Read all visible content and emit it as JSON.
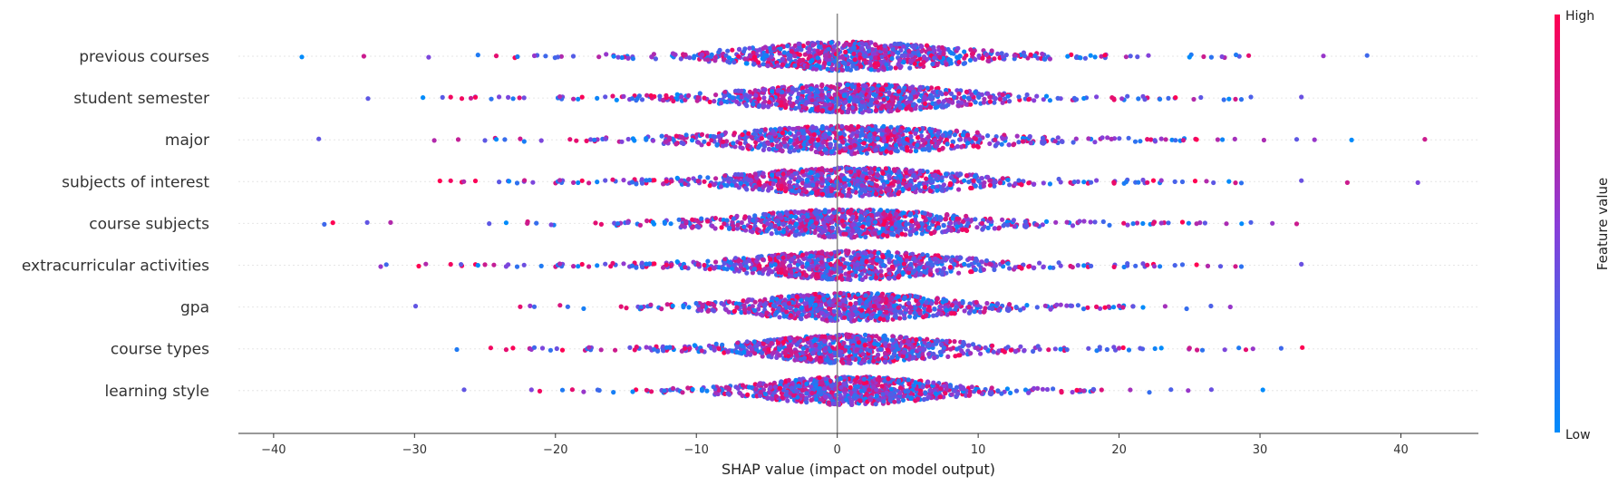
{
  "chart_data": {
    "type": "scatter",
    "subtype": "shap-beeswarm",
    "title": "",
    "xlabel": "SHAP value (impact on model output)",
    "ylabel": "",
    "xlim": [
      -42.5,
      45.5
    ],
    "xticks": [
      -40,
      -30,
      -20,
      -10,
      0,
      10,
      20,
      30,
      40
    ],
    "xtick_labels": [
      "−40",
      "−30",
      "−20",
      "−10",
      "0",
      "10",
      "20",
      "30",
      "40"
    ],
    "features": [
      {
        "name": "previous courses",
        "spread": 5.0,
        "points": [
          -38.0,
          -33.6,
          -29.0,
          -25.5,
          -24.2,
          -21.5,
          -20.7,
          19.0,
          20.5,
          21.3,
          25.0,
          26.0,
          27.3,
          28.3,
          29.2,
          34.5,
          37.6
        ]
      },
      {
        "name": "student semester",
        "spread": 5.0,
        "points": [
          -33.3,
          -29.4,
          -26.0,
          -24.0,
          -23.0,
          19.5,
          20.2,
          23.5,
          24.0,
          25.3,
          25.8,
          27.8
        ]
      },
      {
        "name": "major",
        "spread": 5.5,
        "points": [
          -28.6,
          -25.0,
          -24.2,
          -22.5,
          -21.0,
          21.5,
          22.0,
          23.0,
          24.0,
          25.5,
          27.0,
          32.6,
          36.5,
          41.7
        ]
      },
      {
        "name": "subjects of interest",
        "spread": 5.0,
        "points": [
          -28.2,
          -26.5,
          -24.0,
          -23.3,
          -22.2,
          -21.6,
          20.5,
          22.0,
          23.0,
          24.5,
          25.4,
          26.2,
          26.7,
          27.8,
          36.2,
          41.2
        ]
      },
      {
        "name": "course subjects",
        "spread": 5.0,
        "points": [
          -36.4,
          -35.8,
          -31.7,
          -24.7,
          -23.5,
          -22.0,
          -20.3,
          21.0,
          22.5,
          23.0,
          23.5,
          24.5,
          25.5,
          26.1,
          28.7,
          32.6
        ]
      },
      {
        "name": "extracurricular activities",
        "spread": 5.0,
        "points": [
          -32.4,
          -32.0,
          -29.7,
          -29.2,
          -26.7,
          -25.5,
          -25.0,
          -23.5,
          -21.0,
          22.0,
          22.5,
          24.5,
          25.5,
          26.3,
          27.2
        ]
      },
      {
        "name": "gpa",
        "spread": 4.5,
        "points": [
          -22.5,
          -21.8,
          -21.5,
          19.0,
          20.0,
          21.0,
          21.7
        ]
      },
      {
        "name": "course types",
        "spread": 4.5,
        "points": [
          -27.0,
          -23.5,
          -21.7,
          -21.5,
          -19.5,
          20.0,
          21.5,
          23.0,
          25.0,
          27.5,
          28.5,
          29.0,
          29.5,
          31.5,
          33.0
        ]
      },
      {
        "name": "learning style",
        "spread": 4.0,
        "points": [
          -21.7,
          -19.5,
          -18.8,
          -18.0,
          -17.0,
          17.0,
          17.5,
          18.2,
          30.2
        ]
      }
    ],
    "colorbar": {
      "label": "Feature value",
      "high_label": "High",
      "low_label": "Low",
      "high_color": "#ff0052",
      "low_color": "#008bfb"
    },
    "grid": false,
    "legend": "colorbar right"
  }
}
